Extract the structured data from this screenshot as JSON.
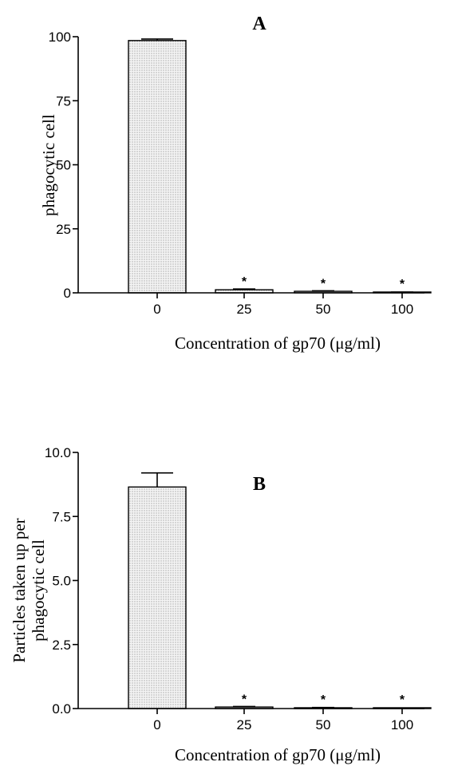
{
  "chart_data": [
    {
      "type": "bar",
      "title": "A",
      "ylabel": "phagocytic cell",
      "xlabel": "Concentration of gp70 (μg/ml)",
      "categories": [
        "0",
        "25",
        "50",
        "100"
      ],
      "values": [
        98.5,
        1.2,
        0.6,
        0.2
      ],
      "errors": [
        0.6,
        0.3,
        0.2,
        0.1
      ],
      "significance": [
        "",
        "*",
        "*",
        "*"
      ],
      "ylim": [
        0,
        100
      ],
      "yticks": [
        "0",
        "25",
        "50",
        "75",
        "100"
      ],
      "ytick_values": [
        0,
        25,
        50,
        75,
        100
      ],
      "grid": false,
      "bar_pattern": "dotted"
    },
    {
      "type": "bar",
      "title": "B",
      "ylabel": "Particles taken up per phagocytic cell",
      "ylabel_lines": [
        "Particles taken up per",
        "phagocytic cell"
      ],
      "xlabel": "Concentration of gp70 (μg/ml)",
      "categories": [
        "0",
        "25",
        "50",
        "100"
      ],
      "values": [
        8.65,
        0.06,
        0.03,
        0.01
      ],
      "errors": [
        0.55,
        0.02,
        0.01,
        0.0
      ],
      "significance": [
        "",
        "*",
        "*",
        "*"
      ],
      "ylim": [
        0,
        10
      ],
      "yticks": [
        "0.0",
        "2.5",
        "5.0",
        "7.5",
        "10.0"
      ],
      "ytick_values": [
        0,
        2.5,
        5,
        7.5,
        10
      ],
      "grid": false,
      "bar_pattern": "dotted"
    }
  ]
}
